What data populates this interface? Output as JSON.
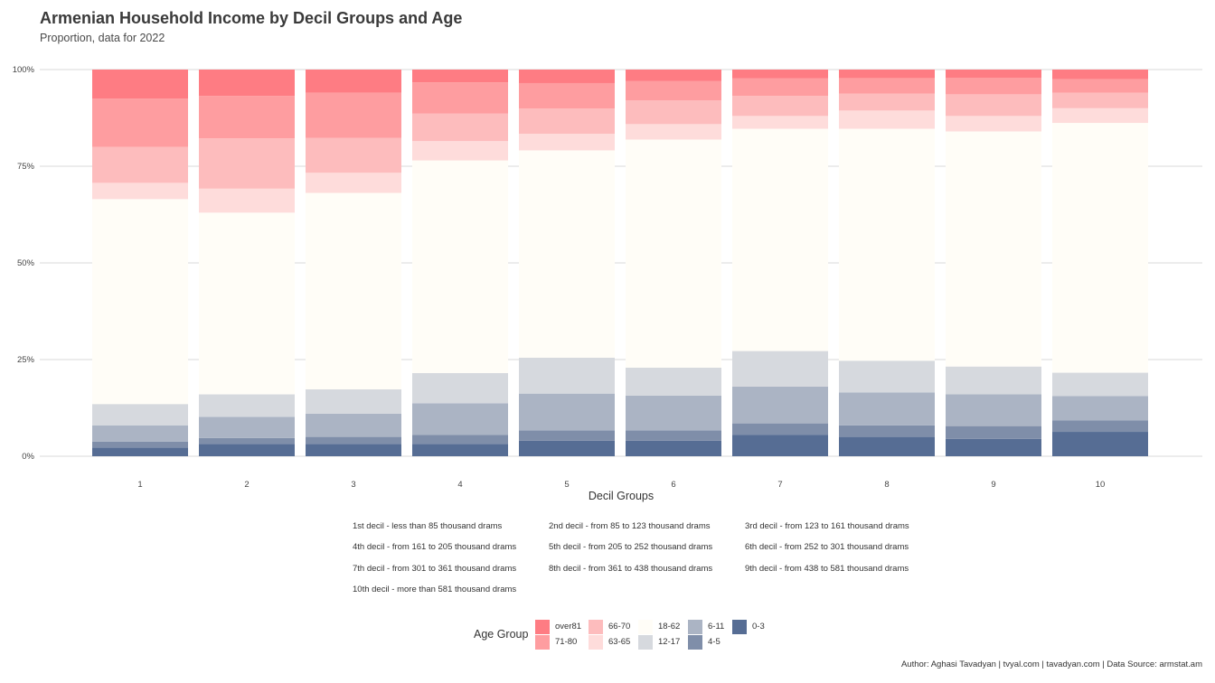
{
  "chart_data": {
    "type": "bar",
    "stacked": true,
    "title": "Armenian Household Income by Decil Groups and Age",
    "subtitle": "Proportion, data for 2022",
    "xlabel": "Decil Groups",
    "ylabel": "",
    "ylim": [
      0,
      1
    ],
    "y_ticks": [
      "0%",
      "25%",
      "50%",
      "75%",
      "100%"
    ],
    "grid": true,
    "categories": [
      "1",
      "2",
      "3",
      "4",
      "5",
      "6",
      "7",
      "8",
      "9",
      "10"
    ],
    "series": [
      {
        "name": "0-3",
        "color": "#566d94",
        "values": [
          0.022,
          0.032,
          0.032,
          0.032,
          0.04,
          0.04,
          0.055,
          0.05,
          0.045,
          0.063
        ]
      },
      {
        "name": "4-5",
        "color": "#7f8ea9",
        "values": [
          0.016,
          0.015,
          0.018,
          0.023,
          0.027,
          0.027,
          0.03,
          0.03,
          0.033,
          0.03
        ]
      },
      {
        "name": "6-11",
        "color": "#abb4c4",
        "values": [
          0.042,
          0.055,
          0.06,
          0.082,
          0.095,
          0.09,
          0.095,
          0.085,
          0.082,
          0.063
        ]
      },
      {
        "name": "12-17",
        "color": "#d6d9de",
        "values": [
          0.055,
          0.058,
          0.063,
          0.078,
          0.093,
          0.072,
          0.092,
          0.082,
          0.072,
          0.06
        ]
      },
      {
        "name": "18-62",
        "color": "#fffdf7",
        "values": [
          0.53,
          0.47,
          0.508,
          0.55,
          0.536,
          0.59,
          0.575,
          0.6,
          0.608,
          0.646
        ]
      },
      {
        "name": "63-65",
        "color": "#fedcdb",
        "values": [
          0.042,
          0.062,
          0.052,
          0.05,
          0.043,
          0.04,
          0.033,
          0.047,
          0.04,
          0.038
        ]
      },
      {
        "name": "66-70",
        "color": "#fdbcbd",
        "values": [
          0.093,
          0.13,
          0.09,
          0.071,
          0.065,
          0.061,
          0.052,
          0.044,
          0.056,
          0.04
        ]
      },
      {
        "name": "71-80",
        "color": "#fe9da0",
        "values": [
          0.125,
          0.11,
          0.117,
          0.081,
          0.066,
          0.05,
          0.045,
          0.04,
          0.043,
          0.035
        ]
      },
      {
        "name": "over81",
        "color": "#fe7c83",
        "values": [
          0.075,
          0.068,
          0.06,
          0.033,
          0.035,
          0.03,
          0.023,
          0.022,
          0.021,
          0.025
        ]
      }
    ],
    "legend_placement": "bottom"
  },
  "decil_notes": [
    "1st decil - less than 85 thousand drams",
    "2nd decil - from 85 to 123 thousand drams",
    "3rd decil - from 123 to 161 thousand drams",
    "4th decil - from 161 to 205 thousand drams",
    "5th decil - from 205 to 252 thousand drams",
    "6th decil - from 252 to 301 thousand drams",
    "7th decil - from 301 to 361 thousand drams",
    "8th decil - from 361 to 438 thousand drams",
    "9th decil - from 438 to 581 thousand drams",
    "10th decil - more than 581 thousand drams"
  ],
  "legend": {
    "title": "Age Group",
    "items": [
      {
        "label": "over81",
        "color": "#fe7c83"
      },
      {
        "label": "71-80",
        "color": "#fe9da0"
      },
      {
        "label": "66-70",
        "color": "#fdbcbd"
      },
      {
        "label": "63-65",
        "color": "#fedcdb"
      },
      {
        "label": "18-62",
        "color": "#fffdf7"
      },
      {
        "label": "12-17",
        "color": "#d6d9de"
      },
      {
        "label": "6-11",
        "color": "#abb4c4"
      },
      {
        "label": "4-5",
        "color": "#7f8ea9"
      },
      {
        "label": "0-3",
        "color": "#566d94"
      }
    ]
  },
  "caption": "Author: Aghasi Tavadyan   |   tvyal.com   |   tavadyan.com    |   Data Source: armstat.am"
}
